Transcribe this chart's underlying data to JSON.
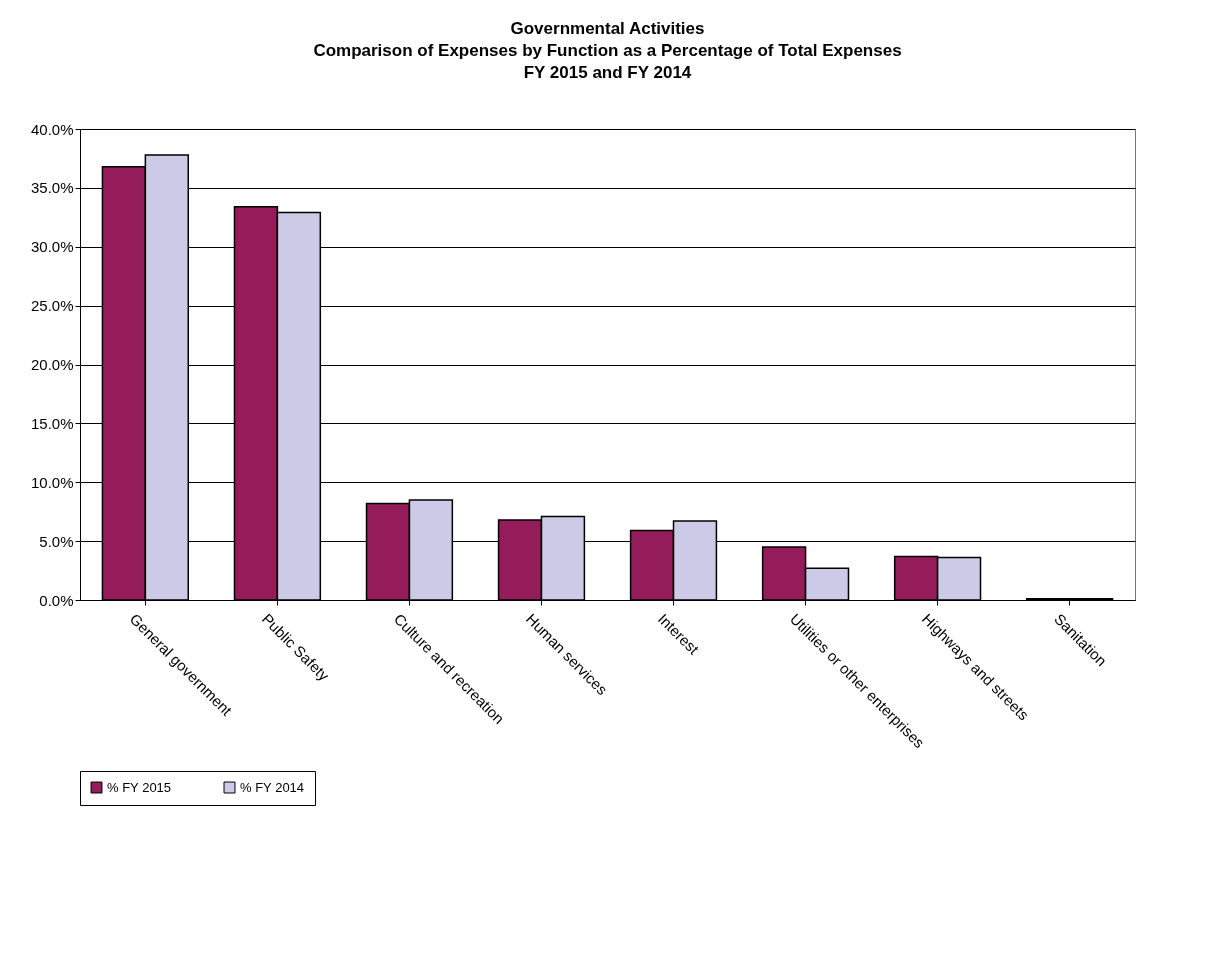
{
  "chart_data": {
    "type": "bar",
    "title": "Governmental Activities\nComparison  of Expenses by Function as a Percentage of Total Expenses\nFY 2015 and FY 2014",
    "categories": [
      "General government",
      "Public Safety",
      "Culture and recreation",
      "Human services",
      "Interest",
      "Utilities or other enterprises",
      "Highways and streets",
      "Sanitation"
    ],
    "series": [
      {
        "name": "% FY 2015",
        "color": "#941c5a",
        "values": [
          36.8,
          33.4,
          8.2,
          6.8,
          5.9,
          4.5,
          3.7,
          0.1
        ]
      },
      {
        "name": "% FY 2014",
        "color": "#cccae6",
        "values": [
          37.8,
          32.9,
          8.5,
          7.1,
          6.7,
          2.7,
          3.6,
          0.1
        ]
      }
    ],
    "ylim": [
      0,
      40
    ],
    "yticks": [
      {
        "value": 0,
        "label": "0.0%"
      },
      {
        "value": 5,
        "label": "5.0%"
      },
      {
        "value": 10,
        "label": "10.0%"
      },
      {
        "value": 15,
        "label": "15.0%"
      },
      {
        "value": 20,
        "label": "20.0%"
      },
      {
        "value": 25,
        "label": "25.0%"
      },
      {
        "value": 30,
        "label": "30.0%"
      },
      {
        "value": 35,
        "label": "35.0%"
      },
      {
        "value": 40,
        "label": "40.0%"
      }
    ],
    "grid": "y",
    "legend": "bottom"
  }
}
